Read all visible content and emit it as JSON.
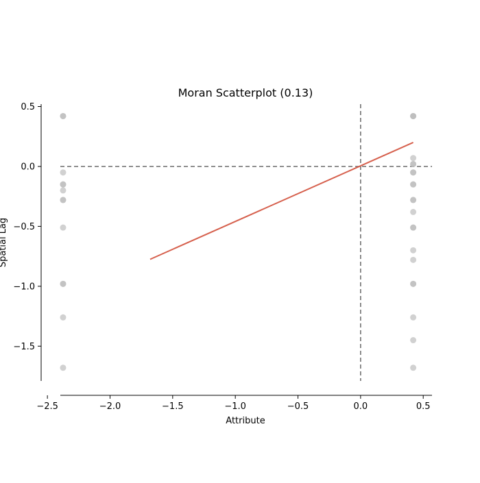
{
  "chart_data": {
    "type": "scatter",
    "title": "Moran Scatterplot (0.13)",
    "xlabel": "Attribute",
    "ylabel": "Spatial Lag",
    "xlim": [
      -2.55,
      0.57
    ],
    "ylim": [
      -1.79,
      0.52
    ],
    "x_ticks": [
      -2.5,
      -2.0,
      -1.5,
      -1.0,
      -0.5,
      0.0,
      0.5
    ],
    "x_tick_labels": [
      "−2.5",
      "−2.0",
      "−1.5",
      "−1.0",
      "−0.5",
      "0.0",
      "0.5"
    ],
    "y_ticks": [
      0.5,
      0.0,
      -0.5,
      -1.0,
      -1.5
    ],
    "y_tick_labels": [
      "0.5",
      "0.0",
      "−0.5",
      "−1.0",
      "−1.5"
    ],
    "grid": false,
    "point_color": "#bdbdbd",
    "fit_line_color": "#d6604d",
    "reference_line_color": "#777777",
    "reference_lines": {
      "x": 0.0,
      "y": 0.0
    },
    "points": [
      {
        "x": -2.375,
        "y": 0.42
      },
      {
        "x": -2.375,
        "y": 0.42
      },
      {
        "x": -2.375,
        "y": -0.05
      },
      {
        "x": -2.375,
        "y": -0.15
      },
      {
        "x": -2.375,
        "y": -0.15
      },
      {
        "x": -2.375,
        "y": -0.2
      },
      {
        "x": -2.375,
        "y": -0.28
      },
      {
        "x": -2.375,
        "y": -0.28
      },
      {
        "x": -2.375,
        "y": -0.51
      },
      {
        "x": -2.375,
        "y": -0.98
      },
      {
        "x": -2.375,
        "y": -0.98
      },
      {
        "x": -2.375,
        "y": -1.26
      },
      {
        "x": -2.375,
        "y": -1.68
      },
      {
        "x": 0.42,
        "y": 0.42
      },
      {
        "x": 0.42,
        "y": 0.42
      },
      {
        "x": 0.42,
        "y": 0.42
      },
      {
        "x": 0.42,
        "y": 0.07
      },
      {
        "x": 0.42,
        "y": 0.02
      },
      {
        "x": 0.42,
        "y": 0.02
      },
      {
        "x": 0.42,
        "y": -0.05
      },
      {
        "x": 0.42,
        "y": -0.05
      },
      {
        "x": 0.42,
        "y": -0.15
      },
      {
        "x": 0.42,
        "y": -0.15
      },
      {
        "x": 0.42,
        "y": -0.28
      },
      {
        "x": 0.42,
        "y": -0.28
      },
      {
        "x": 0.42,
        "y": -0.38
      },
      {
        "x": 0.42,
        "y": -0.51
      },
      {
        "x": 0.42,
        "y": -0.51
      },
      {
        "x": 0.42,
        "y": -0.7
      },
      {
        "x": 0.42,
        "y": -0.78
      },
      {
        "x": 0.42,
        "y": -0.98
      },
      {
        "x": 0.42,
        "y": -0.98
      },
      {
        "x": 0.42,
        "y": -1.26
      },
      {
        "x": 0.42,
        "y": -1.45
      },
      {
        "x": 0.42,
        "y": -1.68
      }
    ],
    "fit_line": {
      "x": [
        -1.68,
        0.42
      ],
      "y": [
        -0.775,
        0.2
      ]
    }
  }
}
